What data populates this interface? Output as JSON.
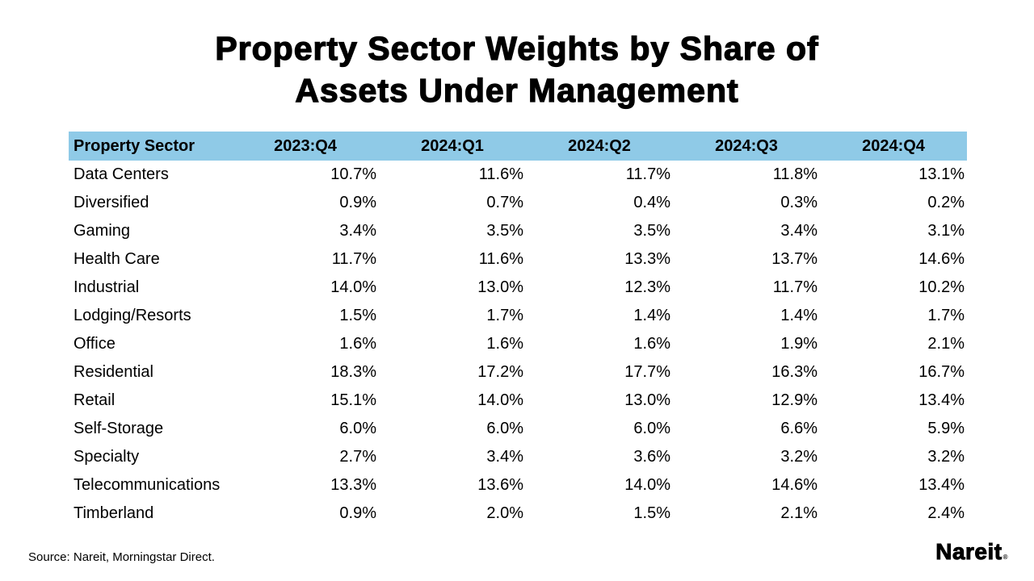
{
  "title": {
    "line1": "Property Sector Weights by Share of",
    "line2": "Assets Under Management"
  },
  "chart_data": {
    "type": "table",
    "title": "Property Sector Weights by Share of Assets Under Management",
    "columns": [
      "Property Sector",
      "2023:Q4",
      "2024:Q1",
      "2024:Q2",
      "2024:Q3",
      "2024:Q4"
    ],
    "rows": [
      {
        "sector": "Data Centers",
        "values": [
          "10.7%",
          "11.6%",
          "11.7%",
          "11.8%",
          "13.1%"
        ]
      },
      {
        "sector": "Diversified",
        "values": [
          "0.9%",
          "0.7%",
          "0.4%",
          "0.3%",
          "0.2%"
        ]
      },
      {
        "sector": "Gaming",
        "values": [
          "3.4%",
          "3.5%",
          "3.5%",
          "3.4%",
          "3.1%"
        ]
      },
      {
        "sector": "Health Care",
        "values": [
          "11.7%",
          "11.6%",
          "13.3%",
          "13.7%",
          "14.6%"
        ]
      },
      {
        "sector": "Industrial",
        "values": [
          "14.0%",
          "13.0%",
          "12.3%",
          "11.7%",
          "10.2%"
        ]
      },
      {
        "sector": "Lodging/Resorts",
        "values": [
          "1.5%",
          "1.7%",
          "1.4%",
          "1.4%",
          "1.7%"
        ]
      },
      {
        "sector": "Office",
        "values": [
          "1.6%",
          "1.6%",
          "1.6%",
          "1.9%",
          "2.1%"
        ]
      },
      {
        "sector": "Residential",
        "values": [
          "18.3%",
          "17.2%",
          "17.7%",
          "16.3%",
          "16.7%"
        ]
      },
      {
        "sector": "Retail",
        "values": [
          "15.1%",
          "14.0%",
          "13.0%",
          "12.9%",
          "13.4%"
        ]
      },
      {
        "sector": "Self-Storage",
        "values": [
          "6.0%",
          "6.0%",
          "6.0%",
          "6.6%",
          "5.9%"
        ]
      },
      {
        "sector": "Specialty",
        "values": [
          "2.7%",
          "3.4%",
          "3.6%",
          "3.2%",
          "3.2%"
        ]
      },
      {
        "sector": "Telecommunications",
        "values": [
          "13.3%",
          "13.6%",
          "14.0%",
          "14.6%",
          "13.4%"
        ]
      },
      {
        "sector": "Timberland",
        "values": [
          "0.9%",
          "2.0%",
          "1.5%",
          "2.1%",
          "2.4%"
        ]
      }
    ]
  },
  "footer": {
    "source": "Source: Nareit, Morningstar Direct.",
    "logo_text": "Nareit",
    "logo_registered": "®"
  },
  "colors": {
    "header_bg": "#8FCAE7",
    "text": "#000000",
    "background": "#FFFFFF"
  }
}
